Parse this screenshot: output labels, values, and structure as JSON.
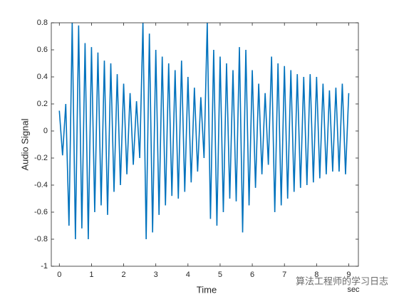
{
  "chart_data": {
    "type": "line",
    "xlabel": "Time",
    "xunit": "sec",
    "ylabel": "Audio Signal",
    "watermark": "算法工程师的学习日志",
    "xlim": [
      -0.25,
      9.3
    ],
    "ylim": [
      -1,
      0.8
    ],
    "xticks": [
      0,
      1,
      2,
      3,
      4,
      5,
      6,
      7,
      8,
      9
    ],
    "yticks": [
      -1,
      -0.8,
      -0.6,
      -0.4,
      -0.2,
      0,
      0.2,
      0.4,
      0.6,
      0.8
    ],
    "color": "#0072bd",
    "x": [
      0,
      0.1,
      0.2,
      0.3,
      0.4,
      0.5,
      0.6,
      0.7,
      0.8,
      0.9,
      1,
      1.1,
      1.2,
      1.3,
      1.4,
      1.5,
      1.6,
      1.7,
      1.8,
      1.9,
      2,
      2.1,
      2.2,
      2.3,
      2.4,
      2.5,
      2.6,
      2.7,
      2.8,
      2.9,
      3,
      3.1,
      3.2,
      3.3,
      3.4,
      3.5,
      3.6,
      3.7,
      3.8,
      3.9,
      4,
      4.1,
      4.2,
      4.3,
      4.4,
      4.5,
      4.6,
      4.7,
      4.8,
      4.9,
      5,
      5.1,
      5.2,
      5.3,
      5.4,
      5.5,
      5.6,
      5.7,
      5.8,
      5.9,
      6,
      6.1,
      6.2,
      6.3,
      6.4,
      6.5,
      6.6,
      6.7,
      6.8,
      6.9,
      7,
      7.1,
      7.2,
      7.3,
      7.4,
      7.5,
      7.6,
      7.7,
      7.8,
      7.9,
      8,
      8.1,
      8.2,
      8.3,
      8.4,
      8.5,
      8.6,
      8.7,
      8.8,
      8.9,
      9
    ],
    "values": [
      0.15,
      -0.18,
      0.2,
      -0.7,
      0.8,
      -0.8,
      0.78,
      -0.72,
      0.65,
      -0.8,
      0.62,
      -0.6,
      0.58,
      -0.55,
      0.52,
      -0.62,
      0.5,
      -0.45,
      0.42,
      -0.4,
      0.35,
      -0.32,
      0.28,
      -0.25,
      0.22,
      -0.2,
      0.8,
      -0.8,
      0.72,
      -0.75,
      0.6,
      -0.62,
      0.55,
      -0.55,
      0.5,
      -0.48,
      0.45,
      -0.5,
      0.52,
      -0.45,
      0.4,
      -0.38,
      0.32,
      -0.3,
      0.25,
      -0.2,
      0.8,
      -0.65,
      0.6,
      -0.7,
      0.55,
      -0.6,
      0.5,
      -0.5,
      0.45,
      -0.52,
      0.62,
      -0.75,
      0.6,
      -0.55,
      0.45,
      -0.42,
      0.35,
      -0.32,
      0.28,
      -0.25,
      0.55,
      -0.6,
      0.5,
      -0.55,
      0.48,
      -0.5,
      0.45,
      -0.45,
      0.42,
      -0.42,
      0.4,
      -0.4,
      0.42,
      -0.38,
      0.4,
      -0.35,
      0.35,
      -0.32,
      0.3,
      -0.3,
      0.32,
      -0.3,
      0.35,
      -0.32,
      0.28
    ]
  }
}
